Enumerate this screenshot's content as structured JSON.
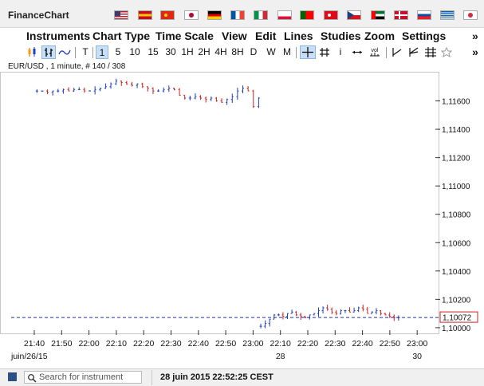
{
  "app": {
    "title": "FinanceChart"
  },
  "flags": [
    {
      "name": "us-flag",
      "colors": [
        "#b22234",
        "#ffffff",
        "#3c3b6e"
      ]
    },
    {
      "name": "spain-flag",
      "colors": [
        "#c60b1e",
        "#ffc400",
        "#c60b1e"
      ]
    },
    {
      "name": "china-flag",
      "colors": [
        "#de2910",
        "#ffde00",
        "#de2910"
      ]
    },
    {
      "name": "japan-flag",
      "colors": [
        "#ffffff",
        "#bc002d",
        "#ffffff"
      ]
    },
    {
      "name": "germany-flag",
      "colors": [
        "#000000",
        "#dd0000",
        "#ffce00"
      ]
    },
    {
      "name": "france-flag",
      "colors": [
        "#0055a4",
        "#ffffff",
        "#ef4135"
      ]
    },
    {
      "name": "italy-flag",
      "colors": [
        "#009246",
        "#ffffff",
        "#ce2b37"
      ]
    },
    {
      "name": "poland-flag",
      "colors": [
        "#ffffff",
        "#ffffff",
        "#dc143c"
      ]
    },
    {
      "name": "portugal-flag",
      "colors": [
        "#006600",
        "#ff0000",
        "#ff0000"
      ]
    },
    {
      "name": "turkey-flag",
      "colors": [
        "#e30a17",
        "#ffffff",
        "#e30a17"
      ]
    },
    {
      "name": "czech-flag",
      "colors": [
        "#11457e",
        "#ffffff",
        "#d7141a"
      ]
    },
    {
      "name": "uae-flag",
      "colors": [
        "#00732f",
        "#ffffff",
        "#000000"
      ]
    },
    {
      "name": "denmark-flag",
      "colors": [
        "#c8102e",
        "#ffffff",
        "#c8102e"
      ]
    },
    {
      "name": "slovakia-flag",
      "colors": [
        "#ffffff",
        "#0b4ea2",
        "#ee1c25"
      ]
    },
    {
      "name": "greece-flag",
      "colors": [
        "#0d5eaf",
        "#ffffff",
        "#0d5eaf"
      ]
    },
    {
      "name": "korea-flag",
      "colors": [
        "#ffffff",
        "#cd2e3a",
        "#ffffff"
      ]
    }
  ],
  "menu": {
    "items": [
      "Instruments",
      "Chart Type",
      "Time Scale",
      "View",
      "Edit",
      "Lines",
      "Studies",
      "Zoom",
      "Settings"
    ],
    "overflow": "»"
  },
  "toolbar": {
    "periods": [
      "T",
      "1",
      "5",
      "10",
      "15",
      "30",
      "1H",
      "2H",
      "4H",
      "8H",
      "D",
      "W",
      "M"
    ],
    "active_period": "1",
    "tools_icons": [
      "candles-icon",
      "ohlc-bars-icon",
      "line-chart-icon",
      "crosshair-icon",
      "grid-icon",
      "info-icon",
      "horizontal-arrows-icon",
      "volume-icon",
      "trendline-icon",
      "fan-icon",
      "fibonacci-icon",
      "pin-icon"
    ],
    "info_label": "i",
    "volume_label": "vol",
    "overflow": "»"
  },
  "chart_info": "EUR/USD , 1 minute, # 140 / 308",
  "statusbar": {
    "search_placeholder": "Search for instrument",
    "datetime": "28 juin 2015 22:52:25 CEST"
  },
  "colors": {
    "up": "#1f3fbf",
    "down": "#cc2222",
    "accent": "#2c4f86",
    "price_label_border": "#cc2222",
    "dashed_line": "#2233aa"
  },
  "chart_data": {
    "type": "candlestick",
    "instrument": "EUR/USD",
    "interval": "1 minute",
    "current_price": "1,10072",
    "current_price_value": 1.10072,
    "ylim": [
      1.0996,
      1.118
    ],
    "y_ticks": [
      {
        "label": "1,11600",
        "value": 1.116
      },
      {
        "label": "1,11400",
        "value": 1.114
      },
      {
        "label": "1,11200",
        "value": 1.112
      },
      {
        "label": "1,11000",
        "value": 1.11
      },
      {
        "label": "1,10800",
        "value": 1.108
      },
      {
        "label": "1,10600",
        "value": 1.106
      },
      {
        "label": "1,10400",
        "value": 1.104
      },
      {
        "label": "1,10200",
        "value": 1.102
      },
      {
        "label": "1,10000",
        "value": 1.1
      }
    ],
    "x_ticks": [
      {
        "label": "21:40",
        "index": 0
      },
      {
        "label": "21:50",
        "index": 1
      },
      {
        "label": "22:00",
        "index": 2
      },
      {
        "label": "22:10",
        "index": 3
      },
      {
        "label": "22:20",
        "index": 4
      },
      {
        "label": "22:30",
        "index": 5
      },
      {
        "label": "22:40",
        "index": 6
      },
      {
        "label": "22:50",
        "index": 7
      },
      {
        "label": "23:00",
        "index": 8
      },
      {
        "label": "22:10",
        "index": 9
      },
      {
        "label": "22:20",
        "index": 10
      },
      {
        "label": "22:30",
        "index": 11
      },
      {
        "label": "22:40",
        "index": 12
      },
      {
        "label": "22:50",
        "index": 13
      },
      {
        "label": "23:00",
        "index": 14
      }
    ],
    "date_labels": [
      {
        "label": "juin/26/15",
        "tick": 0
      },
      {
        "label": "28",
        "tick": 9
      },
      {
        "label": "30",
        "tick": 14
      }
    ],
    "session1": {
      "start_tick": 0,
      "end_tick": 8.3,
      "closes": [
        1.1167,
        1.1167,
        1.1166,
        1.1167,
        1.1167,
        1.1168,
        1.1167,
        1.1168,
        1.1168,
        1.1167,
        1.1167,
        1.1168,
        1.1169,
        1.117,
        1.1172,
        1.1174,
        1.1173,
        1.1172,
        1.1171,
        1.1172,
        1.117,
        1.1169,
        1.1167,
        1.1167,
        1.1168,
        1.1169,
        1.1168,
        1.1164,
        1.1162,
        1.1162,
        1.1163,
        1.1162,
        1.1161,
        1.1162,
        1.116,
        1.1159,
        1.1161,
        1.1163,
        1.1167,
        1.1169,
        1.1167,
        1.1156,
        1.1162
      ]
    },
    "session2": {
      "start_tick": 8.2,
      "end_tick": 13.4,
      "closes": [
        1.1001,
        1.1003,
        1.1006,
        1.1009,
        1.1009,
        1.1008,
        1.101,
        1.1011,
        1.1009,
        1.1008,
        1.1007,
        1.1009,
        1.101,
        1.1012,
        1.1014,
        1.1013,
        1.1011,
        1.101,
        1.1012,
        1.1012,
        1.1011,
        1.1012,
        1.1014,
        1.1013,
        1.101,
        1.1011,
        1.1012,
        1.101,
        1.1009,
        1.1008,
        1.1007,
        1.1007
      ]
    }
  }
}
